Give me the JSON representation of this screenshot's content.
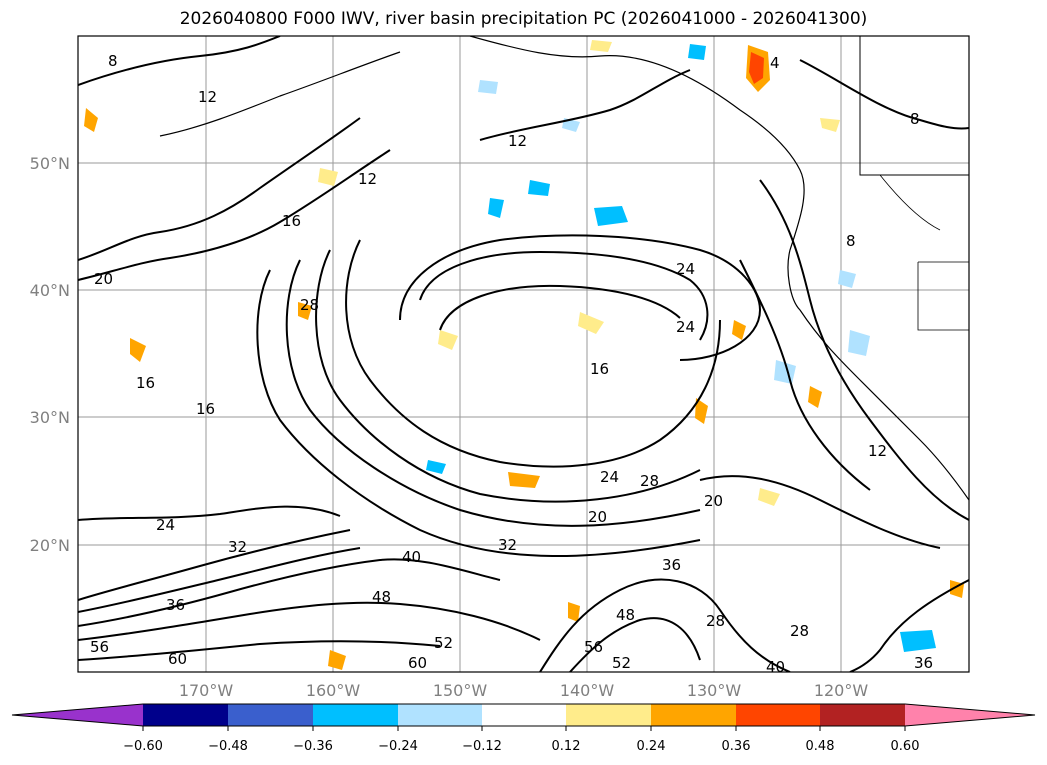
{
  "title": "2026040800 F000 IWV, river basin precipitation PC (2026041000 - 2026041300)",
  "lat_ticks": [
    "50°N",
    "40°N",
    "30°N",
    "20°N"
  ],
  "lon_ticks": [
    "170°W",
    "160°W",
    "150°W",
    "140°W",
    "130°W",
    "120°W"
  ],
  "colorbar": {
    "colors": [
      "#9932cc",
      "#00008b",
      "#3a5fcd",
      "#00bfff",
      "#b0e2ff",
      "#ffffff",
      "#ffec8b",
      "#ffa500",
      "#ff4500",
      "#b22222",
      "#ff82ab"
    ],
    "tick_labels": [
      "−0.60",
      "−0.48",
      "−0.36",
      "−0.24",
      "−0.12",
      "0.12",
      "0.24",
      "0.36",
      "0.48",
      "0.60"
    ]
  },
  "contour_labels": [
    "8",
    "12",
    "12",
    "12",
    "16",
    "16",
    "16",
    "16",
    "20",
    "20",
    "20",
    "24",
    "24",
    "24",
    "24",
    "28",
    "28",
    "28",
    "28",
    "32",
    "32",
    "36",
    "36",
    "36",
    "40",
    "40",
    "48",
    "48",
    "52",
    "52",
    "56",
    "56",
    "60",
    "60",
    "4",
    "8",
    "8",
    "12"
  ]
}
